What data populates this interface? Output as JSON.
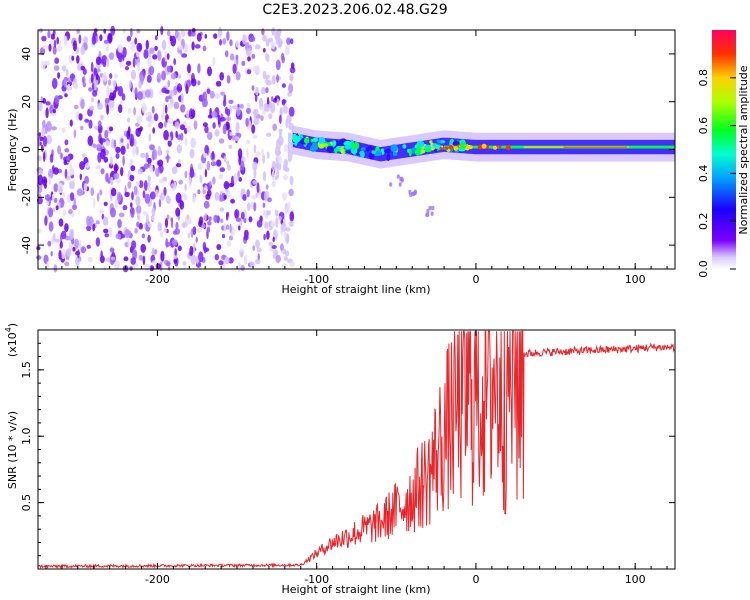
{
  "figure_title": "C2E3.2023.206.02.48.G29",
  "colorbar": {
    "label": "Normalized spectral amplitude",
    "ticks": [
      "0.0",
      "0.2",
      "0.4",
      "0.6",
      "0.8"
    ]
  },
  "chart_data": [
    {
      "type": "heatmap",
      "xlabel": "Height of straight line (km)",
      "ylabel": "Frequency (Hz)",
      "xlim": [
        -275,
        125
      ],
      "ylim": [
        -50,
        50
      ],
      "x_ticks": [
        "-200",
        "-100",
        "0",
        "100"
      ],
      "y_ticks": [
        "-40",
        "-20",
        "0",
        "20",
        "40"
      ],
      "colorscale": "rainbow (0 = white/purple, 1 = red)",
      "description_points": {
        "noise_region_x": [
          -275,
          -115
        ],
        "carrier_track": [
          {
            "x": -115,
            "y": 4
          },
          {
            "x": -100,
            "y": 2
          },
          {
            "x": -80,
            "y": 1
          },
          {
            "x": -60,
            "y": -2
          },
          {
            "x": -40,
            "y": 0
          },
          {
            "x": -20,
            "y": 2
          },
          {
            "x": 0,
            "y": 1
          },
          {
            "x": 50,
            "y": 1
          },
          {
            "x": 100,
            "y": 1
          },
          {
            "x": 125,
            "y": 1
          }
        ],
        "secondary_track": [
          {
            "x": -50,
            "y": -13
          },
          {
            "x": -40,
            "y": -18
          },
          {
            "x": -30,
            "y": -26
          }
        ]
      }
    },
    {
      "type": "line",
      "xlabel": "Height of straight line (km)",
      "ylabel": "SNR (10 * v/v)",
      "y_multiplier": "(x10",
      "y_multiplier_exp": "4",
      "y_multiplier_close": ")",
      "xlim": [
        -275,
        125
      ],
      "ylim": [
        0,
        1.8
      ],
      "x_ticks": [
        "-200",
        "-100",
        "0",
        "100"
      ],
      "y_ticks": [
        "0.5",
        "1.0",
        "1.5"
      ],
      "color": "#e8252a",
      "series": [
        {
          "x": [
            -275,
            -110,
            -100,
            -90,
            -80,
            -70,
            -60,
            -50,
            -40,
            -30,
            -20,
            -10,
            0,
            10,
            20,
            30,
            40,
            60,
            80,
            100,
            110,
            125
          ],
          "y": [
            0.02,
            0.03,
            0.12,
            0.2,
            0.25,
            0.3,
            0.35,
            0.45,
            0.55,
            0.7,
            1.0,
            1.25,
            1.35,
            1.45,
            1.55,
            1.62,
            1.63,
            1.64,
            1.65,
            1.66,
            1.67,
            1.67
          ]
        }
      ]
    }
  ]
}
